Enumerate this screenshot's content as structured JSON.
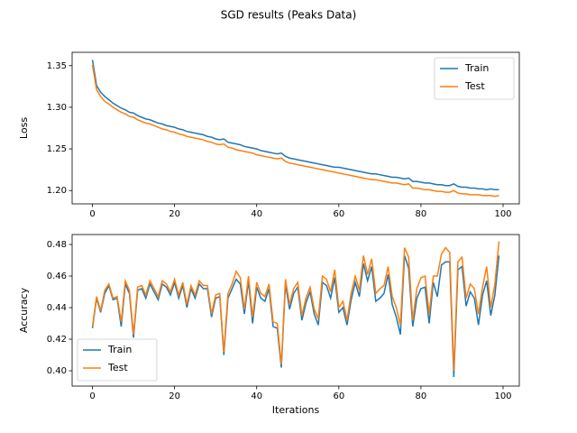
{
  "title": "SGD results (Peaks Data)",
  "chart_data": [
    {
      "type": "line",
      "ylabel": "Loss",
      "legend": "upper right",
      "x": [
        0,
        1,
        2,
        3,
        4,
        5,
        6,
        7,
        8,
        9,
        10,
        11,
        12,
        13,
        14,
        15,
        16,
        17,
        18,
        19,
        20,
        21,
        22,
        23,
        24,
        25,
        26,
        27,
        28,
        29,
        30,
        31,
        32,
        33,
        34,
        35,
        36,
        37,
        38,
        39,
        40,
        41,
        42,
        43,
        44,
        45,
        46,
        47,
        48,
        49,
        50,
        51,
        52,
        53,
        54,
        55,
        56,
        57,
        58,
        59,
        60,
        61,
        62,
        63,
        64,
        65,
        66,
        67,
        68,
        69,
        70,
        71,
        72,
        73,
        74,
        75,
        76,
        77,
        78,
        79,
        80,
        81,
        82,
        83,
        84,
        85,
        86,
        87,
        88,
        89,
        90,
        91,
        92,
        93,
        94,
        95,
        96,
        97,
        98,
        99
      ],
      "series": [
        {
          "name": "Train",
          "color": "#1f77b4",
          "values": [
            1.357,
            1.326,
            1.318,
            1.313,
            1.309,
            1.305,
            1.302,
            1.299,
            1.297,
            1.294,
            1.293,
            1.29,
            1.288,
            1.286,
            1.285,
            1.283,
            1.281,
            1.28,
            1.278,
            1.277,
            1.276,
            1.274,
            1.273,
            1.271,
            1.27,
            1.269,
            1.268,
            1.267,
            1.265,
            1.264,
            1.262,
            1.261,
            1.262,
            1.258,
            1.257,
            1.256,
            1.255,
            1.253,
            1.252,
            1.251,
            1.25,
            1.248,
            1.247,
            1.246,
            1.245,
            1.244,
            1.245,
            1.241,
            1.239,
            1.238,
            1.237,
            1.236,
            1.235,
            1.234,
            1.233,
            1.232,
            1.231,
            1.23,
            1.229,
            1.228,
            1.228,
            1.227,
            1.226,
            1.225,
            1.224,
            1.223,
            1.222,
            1.221,
            1.22,
            1.22,
            1.219,
            1.218,
            1.217,
            1.216,
            1.216,
            1.215,
            1.214,
            1.215,
            1.211,
            1.211,
            1.21,
            1.209,
            1.209,
            1.208,
            1.207,
            1.207,
            1.206,
            1.206,
            1.208,
            1.205,
            1.204,
            1.204,
            1.203,
            1.203,
            1.202,
            1.202,
            1.201,
            1.202,
            1.201,
            1.201
          ]
        },
        {
          "name": "Test",
          "color": "#ff7f0e",
          "values": [
            1.351,
            1.321,
            1.313,
            1.307,
            1.304,
            1.3,
            1.297,
            1.294,
            1.292,
            1.289,
            1.288,
            1.285,
            1.283,
            1.281,
            1.28,
            1.278,
            1.276,
            1.274,
            1.273,
            1.271,
            1.27,
            1.268,
            1.267,
            1.265,
            1.264,
            1.263,
            1.262,
            1.261,
            1.259,
            1.258,
            1.256,
            1.255,
            1.256,
            1.252,
            1.251,
            1.249,
            1.248,
            1.247,
            1.246,
            1.245,
            1.243,
            1.242,
            1.241,
            1.24,
            1.239,
            1.238,
            1.239,
            1.235,
            1.233,
            1.232,
            1.231,
            1.23,
            1.229,
            1.228,
            1.227,
            1.226,
            1.225,
            1.224,
            1.223,
            1.222,
            1.221,
            1.22,
            1.219,
            1.218,
            1.217,
            1.216,
            1.215,
            1.214,
            1.213,
            1.213,
            1.212,
            1.211,
            1.21,
            1.209,
            1.209,
            1.208,
            1.207,
            1.208,
            1.203,
            1.203,
            1.202,
            1.201,
            1.201,
            1.2,
            1.199,
            1.199,
            1.198,
            1.198,
            1.2,
            1.197,
            1.196,
            1.196,
            1.195,
            1.195,
            1.195,
            1.194,
            1.194,
            1.194,
            1.193,
            1.194
          ]
        }
      ],
      "xlim": [
        -4.95,
        103.95
      ],
      "xticks": [
        0,
        20,
        40,
        60,
        80,
        100
      ],
      "ylim": [
        1.184,
        1.366
      ],
      "yticks": [
        {
          "value": 1.2,
          "label": "1.20"
        },
        1.25,
        {
          "value": 1.3,
          "label": "1.30"
        },
        1.35
      ]
    },
    {
      "type": "line",
      "ylabel": "Accuracy",
      "xlabel": "Iterations",
      "legend": "lower left",
      "x": [
        0,
        1,
        2,
        3,
        4,
        5,
        6,
        7,
        8,
        9,
        10,
        11,
        12,
        13,
        14,
        15,
        16,
        17,
        18,
        19,
        20,
        21,
        22,
        23,
        24,
        25,
        26,
        27,
        28,
        29,
        30,
        31,
        32,
        33,
        34,
        35,
        36,
        37,
        38,
        39,
        40,
        41,
        42,
        43,
        44,
        45,
        46,
        47,
        48,
        49,
        50,
        51,
        52,
        53,
        54,
        55,
        56,
        57,
        58,
        59,
        60,
        61,
        62,
        63,
        64,
        65,
        66,
        67,
        68,
        69,
        70,
        71,
        72,
        73,
        74,
        75,
        76,
        77,
        78,
        79,
        80,
        81,
        82,
        83,
        84,
        85,
        86,
        87,
        88,
        89,
        90,
        91,
        92,
        93,
        94,
        95,
        96,
        97,
        98,
        99
      ],
      "series": [
        {
          "name": "Train",
          "color": "#1f77b4",
          "values": [
            0.427,
            0.446,
            0.437,
            0.449,
            0.454,
            0.445,
            0.446,
            0.428,
            0.455,
            0.449,
            0.421,
            0.451,
            0.452,
            0.446,
            0.455,
            0.45,
            0.445,
            0.455,
            0.453,
            0.448,
            0.456,
            0.446,
            0.454,
            0.44,
            0.452,
            0.446,
            0.455,
            0.452,
            0.452,
            0.434,
            0.446,
            0.447,
            0.41,
            0.446,
            0.452,
            0.458,
            0.455,
            0.436,
            0.457,
            0.43,
            0.453,
            0.446,
            0.444,
            0.452,
            0.428,
            0.427,
            0.402,
            0.455,
            0.439,
            0.449,
            0.453,
            0.432,
            0.443,
            0.45,
            0.436,
            0.429,
            0.456,
            0.454,
            0.446,
            0.459,
            0.437,
            0.44,
            0.429,
            0.445,
            0.456,
            0.447,
            0.468,
            0.457,
            0.466,
            0.444,
            0.446,
            0.449,
            0.461,
            0.442,
            0.434,
            0.423,
            0.473,
            0.465,
            0.428,
            0.446,
            0.452,
            0.453,
            0.43,
            0.456,
            0.447,
            0.467,
            0.469,
            0.469,
            0.396,
            0.464,
            0.466,
            0.441,
            0.45,
            0.446,
            0.429,
            0.448,
            0.457,
            0.435,
            0.448,
            0.473
          ]
        },
        {
          "name": "Test",
          "color": "#ff7f0e",
          "values": [
            0.428,
            0.447,
            0.438,
            0.451,
            0.455,
            0.446,
            0.447,
            0.431,
            0.457,
            0.451,
            0.423,
            0.453,
            0.454,
            0.448,
            0.457,
            0.452,
            0.447,
            0.457,
            0.455,
            0.45,
            0.458,
            0.448,
            0.456,
            0.442,
            0.454,
            0.448,
            0.457,
            0.454,
            0.454,
            0.436,
            0.448,
            0.449,
            0.412,
            0.449,
            0.455,
            0.463,
            0.459,
            0.439,
            0.46,
            0.434,
            0.456,
            0.449,
            0.447,
            0.455,
            0.431,
            0.43,
            0.404,
            0.458,
            0.442,
            0.452,
            0.456,
            0.435,
            0.446,
            0.453,
            0.439,
            0.433,
            0.46,
            0.458,
            0.45,
            0.464,
            0.44,
            0.444,
            0.432,
            0.449,
            0.46,
            0.451,
            0.473,
            0.461,
            0.471,
            0.449,
            0.452,
            0.454,
            0.466,
            0.447,
            0.44,
            0.429,
            0.478,
            0.472,
            0.432,
            0.452,
            0.459,
            0.46,
            0.436,
            0.46,
            0.46,
            0.474,
            0.478,
            0.475,
            0.4,
            0.469,
            0.472,
            0.446,
            0.455,
            0.452,
            0.436,
            0.453,
            0.466,
            0.44,
            0.455,
            0.482
          ]
        }
      ],
      "xlim": [
        -4.95,
        103.95
      ],
      "xticks": [
        0,
        20,
        40,
        60,
        80,
        100
      ],
      "ylim": [
        0.3903,
        0.4863
      ],
      "yticks": [
        {
          "value": 0.4,
          "label": "0.40"
        },
        0.42,
        0.44,
        0.46,
        0.48
      ]
    }
  ]
}
